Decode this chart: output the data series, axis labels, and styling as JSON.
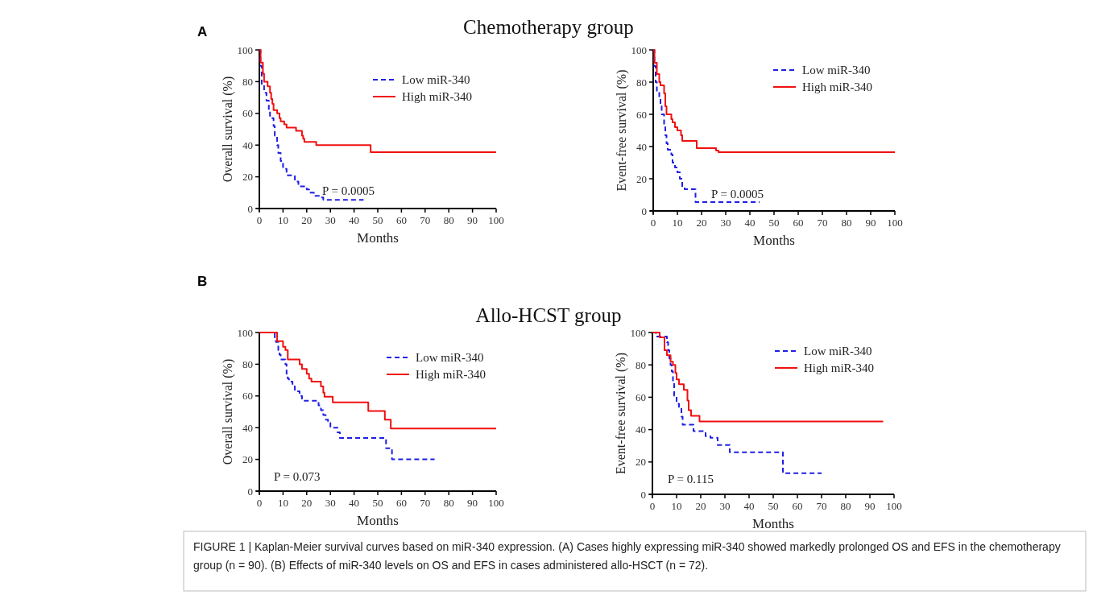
{
  "chart_data": [
    {
      "type": "step",
      "title": "Chemotherapy group",
      "xlabel": "Months",
      "ylabel": "Overall survival (%)",
      "xlim": [
        0,
        100
      ],
      "ylim": [
        0,
        100
      ],
      "xticks": [
        0,
        10,
        20,
        30,
        40,
        50,
        60,
        70,
        80,
        90,
        100
      ],
      "yticks": [
        0,
        20,
        40,
        60,
        80,
        100
      ],
      "legend": "top right",
      "annotations": [
        "A",
        "P = 0.0005"
      ],
      "series": [
        {
          "name": "Low miR-340",
          "color": "#1f1fe6",
          "line_style": "dashed",
          "x": [
            0,
            0.5,
            1,
            2,
            3,
            4,
            4.5,
            6,
            6.5,
            7.5,
            8,
            9,
            10,
            11.5,
            15,
            16.5,
            20,
            21,
            23,
            26,
            27,
            44
          ],
          "values": [
            100,
            90,
            78,
            73,
            68,
            62,
            57,
            52,
            46,
            40,
            35,
            30,
            25,
            21,
            17,
            14,
            12,
            10,
            8,
            7,
            5.5,
            5.5
          ]
        },
        {
          "name": "High miR-340",
          "color": "#f01010",
          "line_style": "solid",
          "x": [
            0,
            0.5,
            1.5,
            2,
            3.5,
            4.5,
            5,
            5.5,
            6,
            7.5,
            8.5,
            9,
            10.5,
            11.5,
            15.5,
            18,
            18.5,
            19,
            24,
            47,
            100
          ],
          "values": [
            100,
            92,
            85,
            80,
            77,
            73,
            69,
            66,
            62,
            60,
            57,
            55,
            53,
            51,
            49,
            46,
            44,
            42,
            40,
            35.5,
            35.5
          ]
        }
      ]
    },
    {
      "type": "step",
      "xlabel": "Months",
      "ylabel": "Event-free survival (%)",
      "xlim": [
        0,
        100
      ],
      "ylim": [
        0,
        100
      ],
      "xticks": [
        0,
        10,
        20,
        30,
        40,
        50,
        60,
        70,
        80,
        90,
        100
      ],
      "yticks": [
        0,
        20,
        40,
        60,
        80,
        100
      ],
      "legend": "top right",
      "annotations": [
        "P = 0.0005"
      ],
      "series": [
        {
          "name": "Low miR-340",
          "color": "#1f1fe6",
          "line_style": "dashed",
          "x": [
            0,
            0.5,
            1,
            1.5,
            2.5,
            3,
            3.5,
            4.5,
            5,
            5.5,
            6,
            7.5,
            8,
            9,
            10,
            11,
            12,
            13,
            17.5,
            44
          ],
          "values": [
            100,
            90,
            80,
            74,
            70,
            65,
            60,
            52,
            47,
            42,
            38,
            35,
            30,
            27,
            24,
            20,
            15,
            13.5,
            5.5,
            5.5
          ]
        },
        {
          "name": "High miR-340",
          "color": "#f01010",
          "line_style": "solid",
          "x": [
            0,
            0.5,
            1.5,
            2.5,
            3,
            4.5,
            5,
            5.5,
            7.5,
            8,
            9,
            10,
            11.5,
            12,
            18,
            26,
            27,
            100
          ],
          "values": [
            100,
            92,
            85,
            80,
            78,
            73,
            65,
            60,
            57,
            55,
            52,
            50,
            47,
            43.5,
            39,
            37.5,
            36.5,
            36.5
          ]
        }
      ]
    },
    {
      "type": "step",
      "title": "Allo-HCST group",
      "xlabel": "Months",
      "ylabel": "Overall survival (%)",
      "xlim": [
        0,
        100
      ],
      "ylim": [
        0,
        100
      ],
      "xticks": [
        0,
        10,
        20,
        30,
        40,
        50,
        60,
        70,
        80,
        90,
        100
      ],
      "yticks": [
        0,
        20,
        40,
        60,
        80,
        100
      ],
      "legend": "top right",
      "annotations": [
        "B",
        "P = 0.073"
      ],
      "series": [
        {
          "name": "Low miR-340",
          "color": "#1f1fe6",
          "line_style": "dashed",
          "x": [
            0,
            6.5,
            7,
            8,
            8.5,
            9,
            11,
            11.5,
            12,
            12.5,
            14,
            15,
            17,
            18,
            25,
            26,
            27,
            28,
            29,
            30,
            33,
            34,
            53.5,
            56,
            74
          ],
          "values": [
            100,
            97,
            94,
            89,
            86,
            83,
            80,
            74,
            71,
            69,
            66,
            63,
            60,
            57,
            54,
            51,
            48,
            45,
            43,
            40,
            37,
            33.5,
            27,
            20,
            20
          ]
        },
        {
          "name": "High miR-340",
          "color": "#f01010",
          "line_style": "solid",
          "x": [
            0,
            7.5,
            10,
            11,
            12,
            17,
            18,
            20,
            21,
            22,
            26,
            27,
            27.5,
            31,
            46,
            53,
            55.5,
            100
          ],
          "values": [
            100,
            94.5,
            91,
            89,
            83,
            80,
            77,
            74,
            71,
            69,
            66,
            62,
            59.5,
            56,
            50.5,
            45,
            39.5,
            39.5
          ]
        }
      ]
    },
    {
      "type": "step",
      "xlabel": "Months",
      "ylabel": "Event-free survival (%)",
      "xlim": [
        0,
        100
      ],
      "ylim": [
        0,
        100
      ],
      "xticks": [
        0,
        10,
        20,
        30,
        40,
        50,
        60,
        70,
        80,
        90,
        100
      ],
      "yticks": [
        0,
        20,
        40,
        60,
        80,
        100
      ],
      "legend": "top right",
      "annotations": [
        "P = 0.115",
        "FIGURE 1 | Kaplan-Meier survival curves based on miR-340 expression. (A) Cases highly expressing miR-340 showed markedly prolonged OS and EFS in the chemotherapy group (n = 90). (B) Effects of miR-340 levels on OS and EFS in cases administered allo-HSCT (n = 72)."
      ],
      "series": [
        {
          "name": "Low miR-340",
          "color": "#1f1fe6",
          "line_style": "dashed",
          "x": [
            0,
            1.5,
            6,
            6.5,
            7,
            7.5,
            8,
            8.5,
            9,
            10,
            11,
            12,
            12.5,
            17,
            22,
            24,
            27,
            32,
            54,
            70
          ],
          "values": [
            100,
            97.5,
            94,
            89,
            84,
            80,
            76,
            69,
            61,
            56,
            54,
            48,
            43,
            39,
            36,
            35,
            30.5,
            26,
            13,
            13
          ]
        },
        {
          "name": "High miR-340",
          "color": "#f01010",
          "line_style": "solid",
          "x": [
            0,
            3,
            5,
            6,
            7.5,
            8.5,
            9.5,
            10,
            11,
            13,
            14.5,
            15,
            16,
            19.5,
            95.5
          ],
          "values": [
            100,
            97,
            89,
            86,
            82,
            80,
            75,
            71,
            68,
            64.5,
            58,
            52,
            48.5,
            45,
            45
          ]
        }
      ]
    }
  ]
}
